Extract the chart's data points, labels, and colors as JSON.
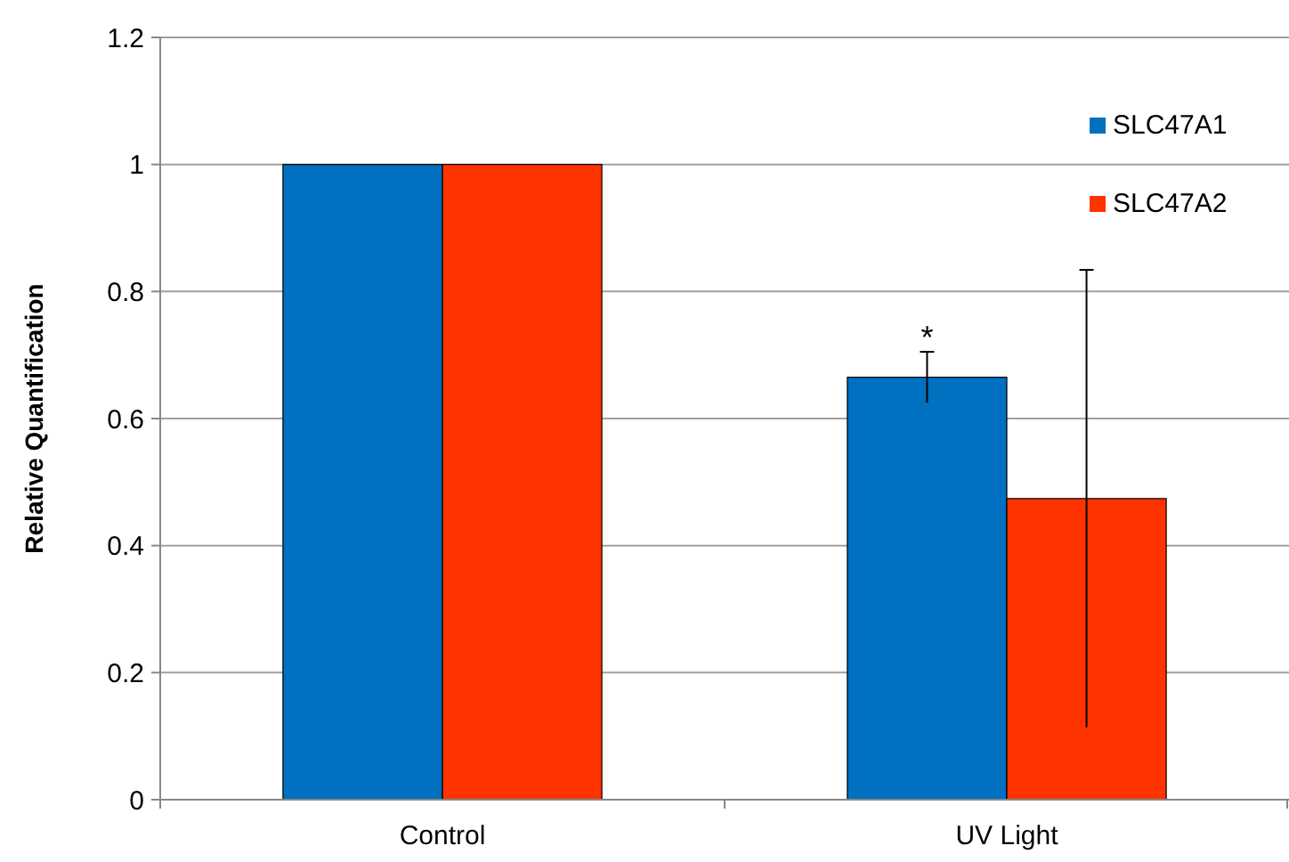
{
  "chart_data": {
    "type": "bar",
    "ylabel": "Relative Quantification",
    "categories": [
      "Control",
      "UV Light"
    ],
    "series": [
      {
        "name": "SLC47A1",
        "color": "#0070c0",
        "values": [
          1,
          0.665
        ],
        "errors": [
          null,
          0.04
        ]
      },
      {
        "name": "SLC47A2",
        "color": "#ff3300",
        "values": [
          1,
          0.474
        ],
        "errors": [
          null,
          0.36
        ]
      }
    ],
    "ylim": [
      0,
      1.2
    ],
    "yticks": [
      0,
      0.2,
      0.4,
      0.6,
      0.8,
      1,
      1.2
    ],
    "grid": "y",
    "legend": "top right",
    "annotations": [
      "*"
    ]
  }
}
